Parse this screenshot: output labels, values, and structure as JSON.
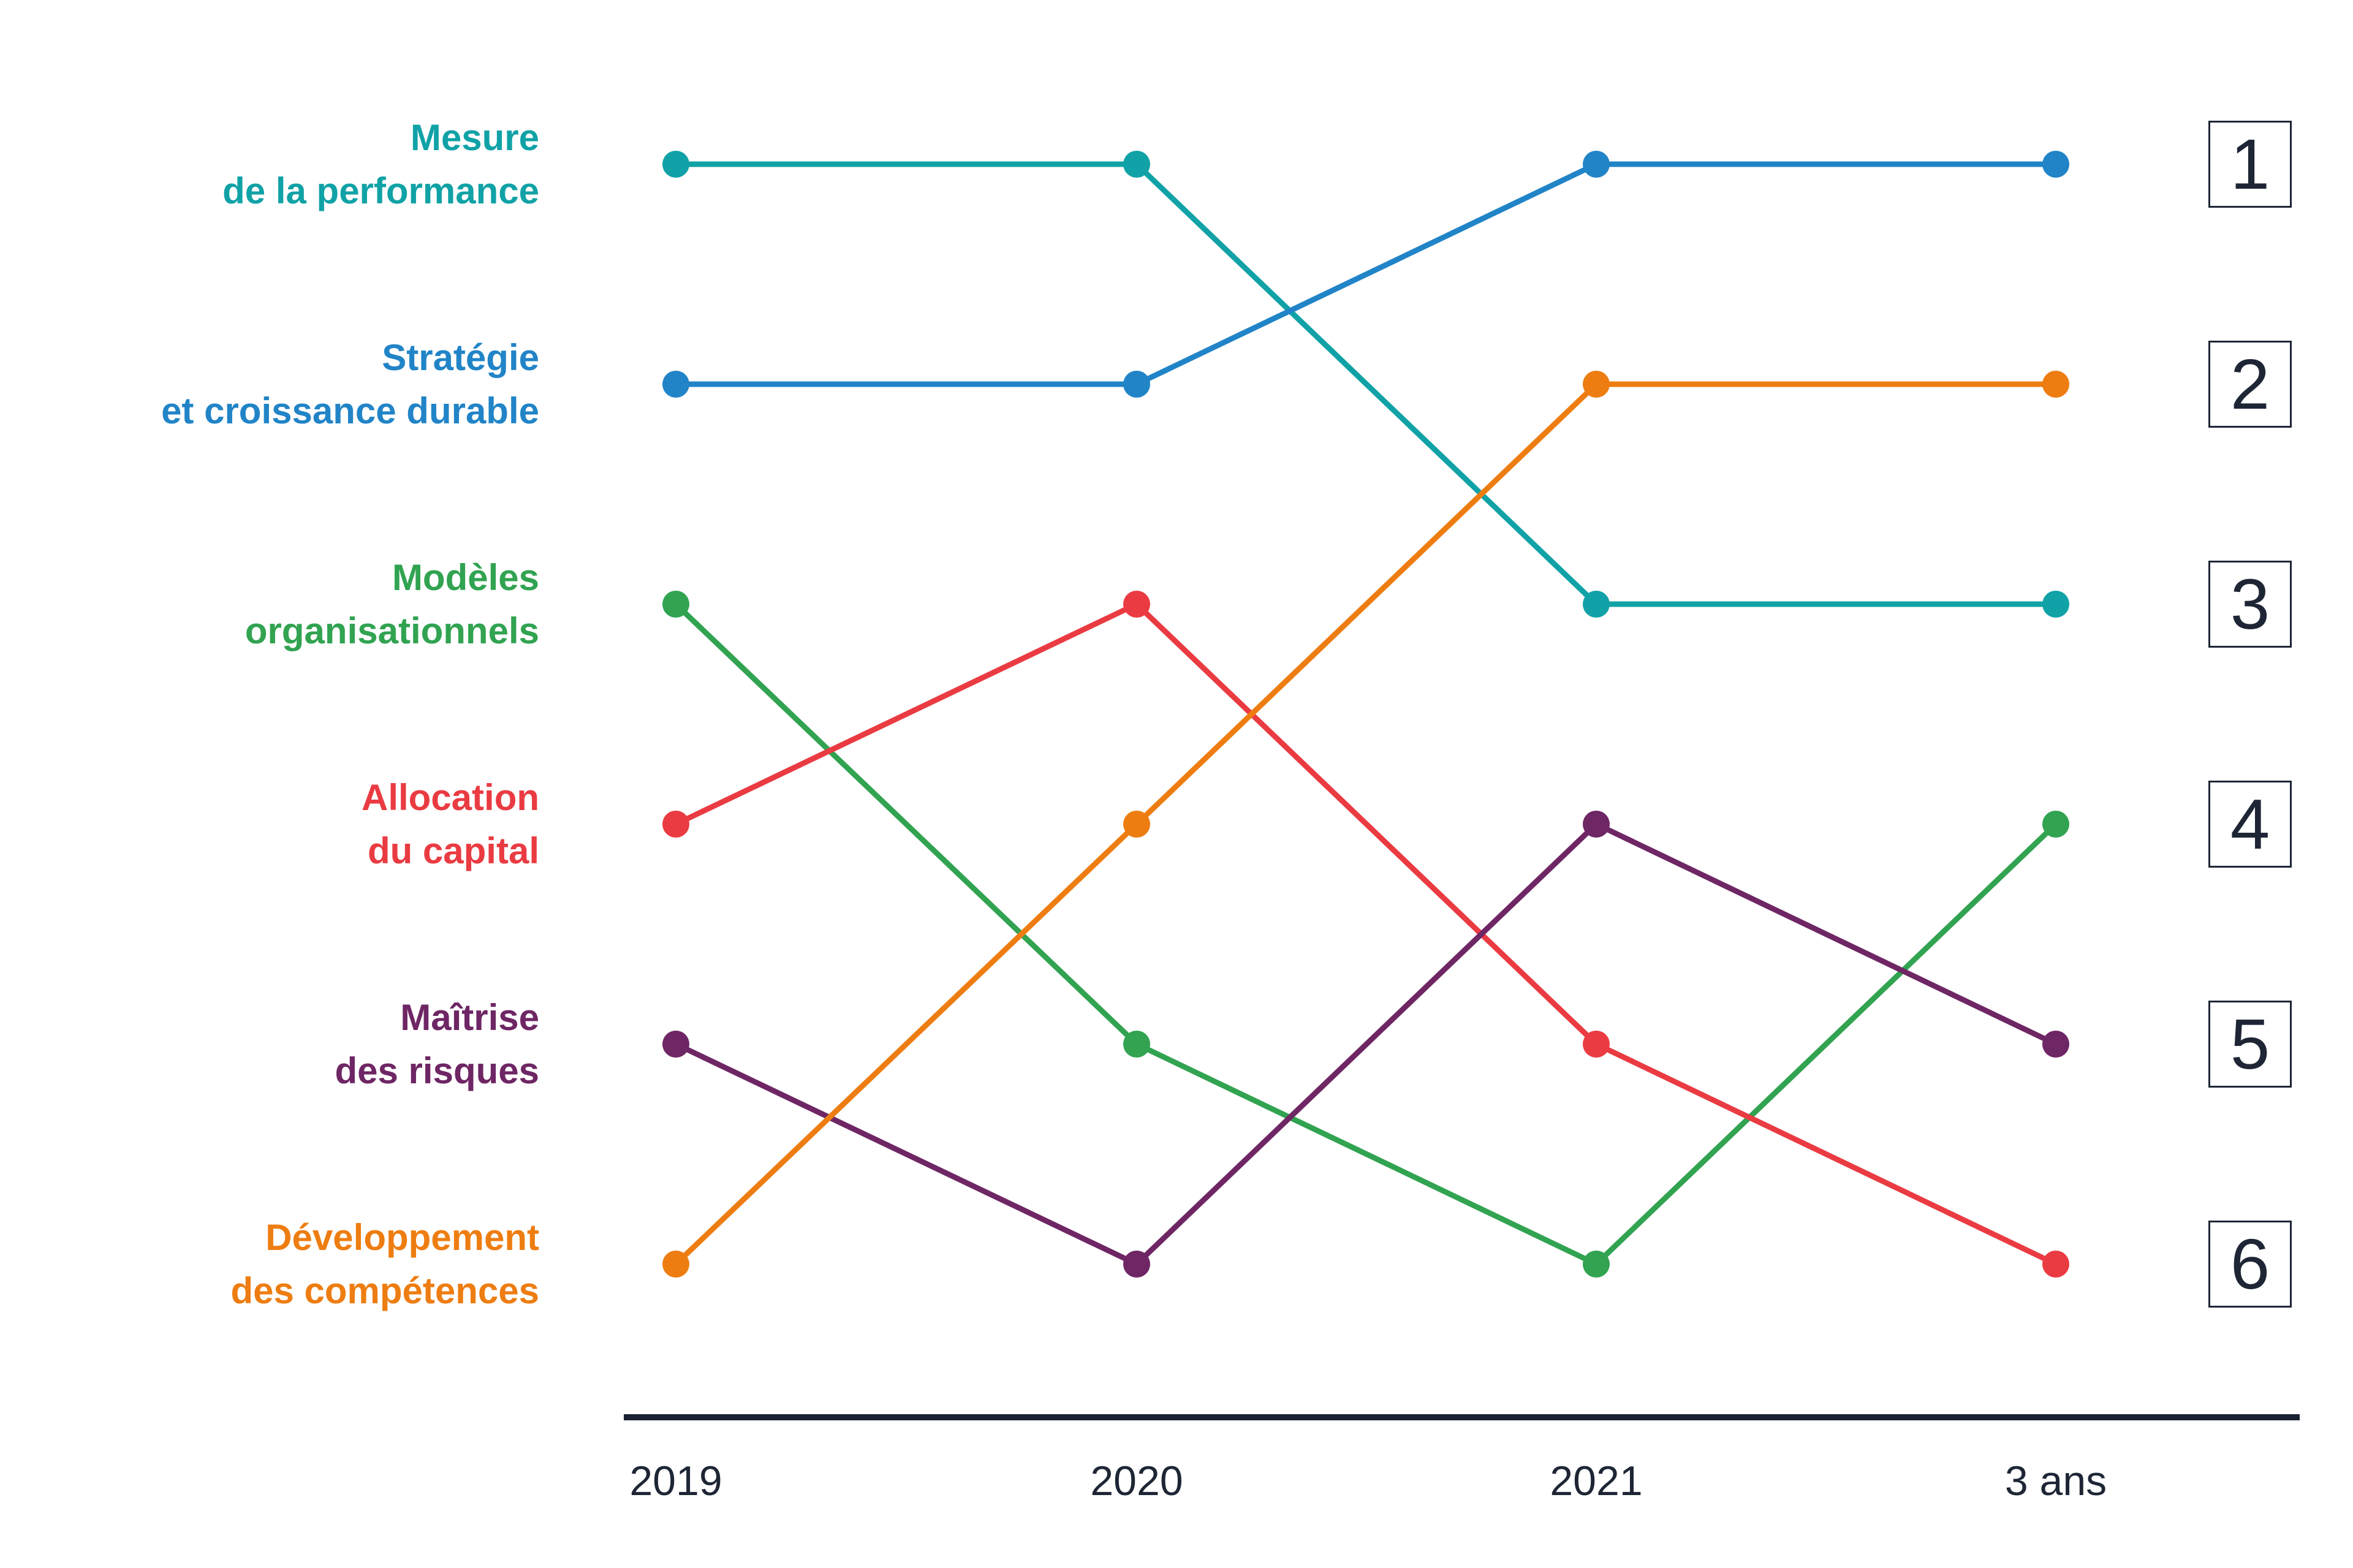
{
  "chart_data": {
    "type": "line",
    "variant": "bump-ranking-chart",
    "title": "",
    "categories": [
      "2019",
      "2020",
      "2021",
      "3 ans"
    ],
    "rank_scale": [
      "1",
      "2",
      "3",
      "4",
      "5",
      "6"
    ],
    "series": [
      {
        "name": "Mesure de la performance",
        "label_lines": [
          "Mesure",
          "de la performance"
        ],
        "color": "#10a2a6",
        "ranks": [
          1,
          1,
          3,
          3
        ]
      },
      {
        "name": "Stratégie et croissance durable",
        "label_lines": [
          "Stratégie",
          "et croissance durable"
        ],
        "color": "#2184c7",
        "ranks": [
          2,
          2,
          1,
          1
        ]
      },
      {
        "name": "Modèles organisationnels",
        "label_lines": [
          "Modèles",
          "organisationnels"
        ],
        "color": "#31a351",
        "ranks": [
          3,
          5,
          6,
          4
        ]
      },
      {
        "name": "Allocation du capital",
        "label_lines": [
          "Allocation",
          "du capital"
        ],
        "color": "#ea3b42",
        "ranks": [
          4,
          3,
          5,
          6
        ]
      },
      {
        "name": "Maîtrise des risques",
        "label_lines": [
          "Maîtrise",
          "des risques"
        ],
        "color": "#6e2664",
        "ranks": [
          5,
          6,
          4,
          5
        ]
      },
      {
        "name": "Développement des compétences",
        "label_lines": [
          "Développement",
          "des compétences"
        ],
        "color": "#ee7d11",
        "ranks": [
          6,
          4,
          2,
          2
        ]
      }
    ],
    "ink_color": "#1e2635",
    "axis_line_color": "#1a2130",
    "grid": false,
    "legend_position": "left-category-labels",
    "right_rank_boxes": true,
    "ylim": [
      1,
      6
    ],
    "y_direction": "rank-1-on-top"
  }
}
